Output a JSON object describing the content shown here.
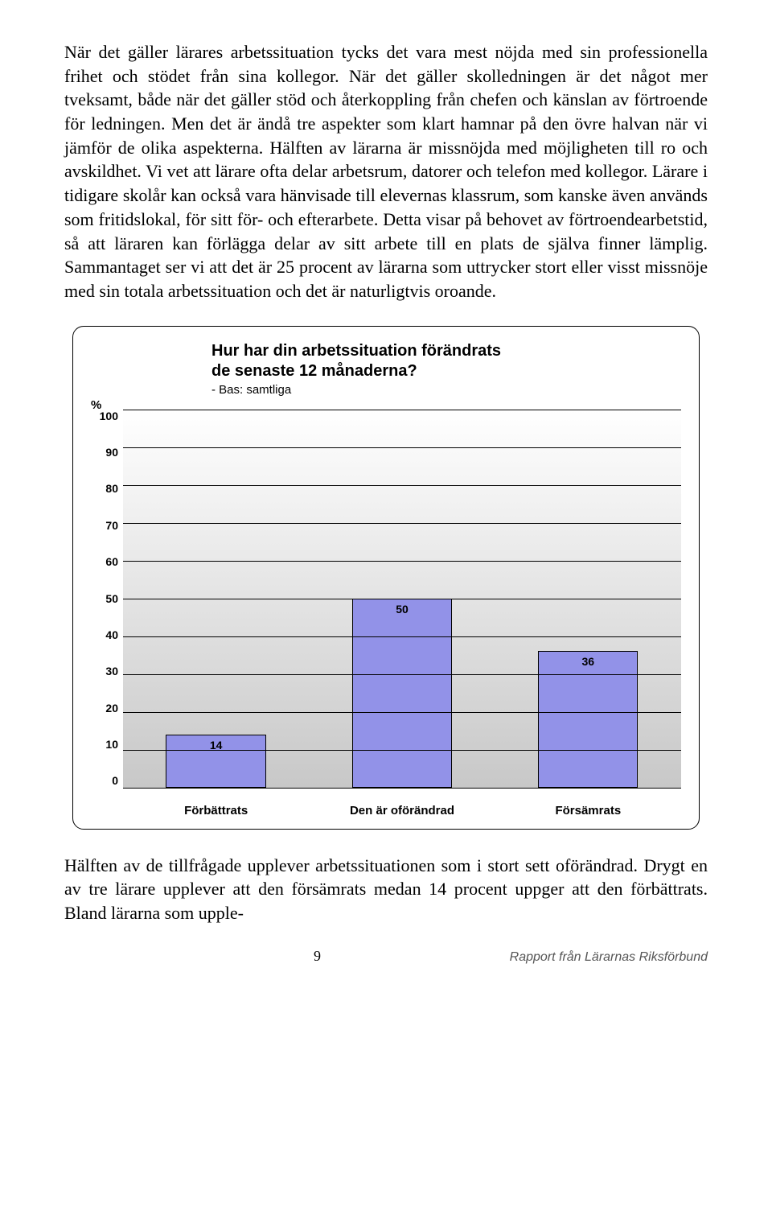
{
  "paragraph1": "När det gäller lärares arbetssituation tycks det vara mest nöjda med sin professionella frihet och stödet från sina kollegor. När det gäller skolledningen är det något mer tveksamt, både när det gäller stöd och återkoppling från chefen och känslan av förtroende för ledningen. Men det är ändå tre aspekter som klart hamnar på den övre halvan när vi jämför de olika aspekterna. Hälften av lärarna är missnöjda med möjligheten till ro och avskildhet. Vi vet att lärare ofta delar arbetsrum, datorer och telefon med kollegor. Lärare i tidigare skolår kan också vara hänvisade till elevernas klassrum, som kanske även används som fritidslokal, för sitt för- och efterarbete. Detta visar på behovet av förtroendearbetstid, så att läraren kan förlägga delar av sitt arbete till en plats de själva finner lämplig. Sammantaget ser vi att det är 25 procent av lärarna som uttrycker stort eller visst missnöje med sin totala arbetssituation och det är naturligtvis oroande.",
  "chart": {
    "type": "bar",
    "title_line1": "Hur har din arbetssituation förändrats",
    "title_line2": "de senaste 12 månaderna?",
    "subtitle": "- Bas: samtliga",
    "y_unit": "%",
    "ylim": [
      0,
      100
    ],
    "ytick_step": 10,
    "yticks": [
      "100",
      "90",
      "80",
      "70",
      "60",
      "50",
      "40",
      "30",
      "20",
      "10",
      "0"
    ],
    "categories": [
      "Förbättrats",
      "Den är oförändrad",
      "Försämrats"
    ],
    "values": [
      14,
      50,
      36
    ],
    "bar_color": "#9292e8",
    "bar_border": "#000000",
    "background_gradient_top": "#ffffff",
    "background_gradient_bottom": "#c8c8c8",
    "grid_color": "#000000"
  },
  "paragraph2": "Hälften av de tillfrågade upplever arbetssituationen som i stort sett oförändrad. Drygt en av tre lärare upplever att den försämrats medan 14 procent uppger att den förbättrats. Bland lärarna som upple-",
  "footer": {
    "page": "9",
    "source": "Rapport från Lärarnas Riksförbund"
  }
}
